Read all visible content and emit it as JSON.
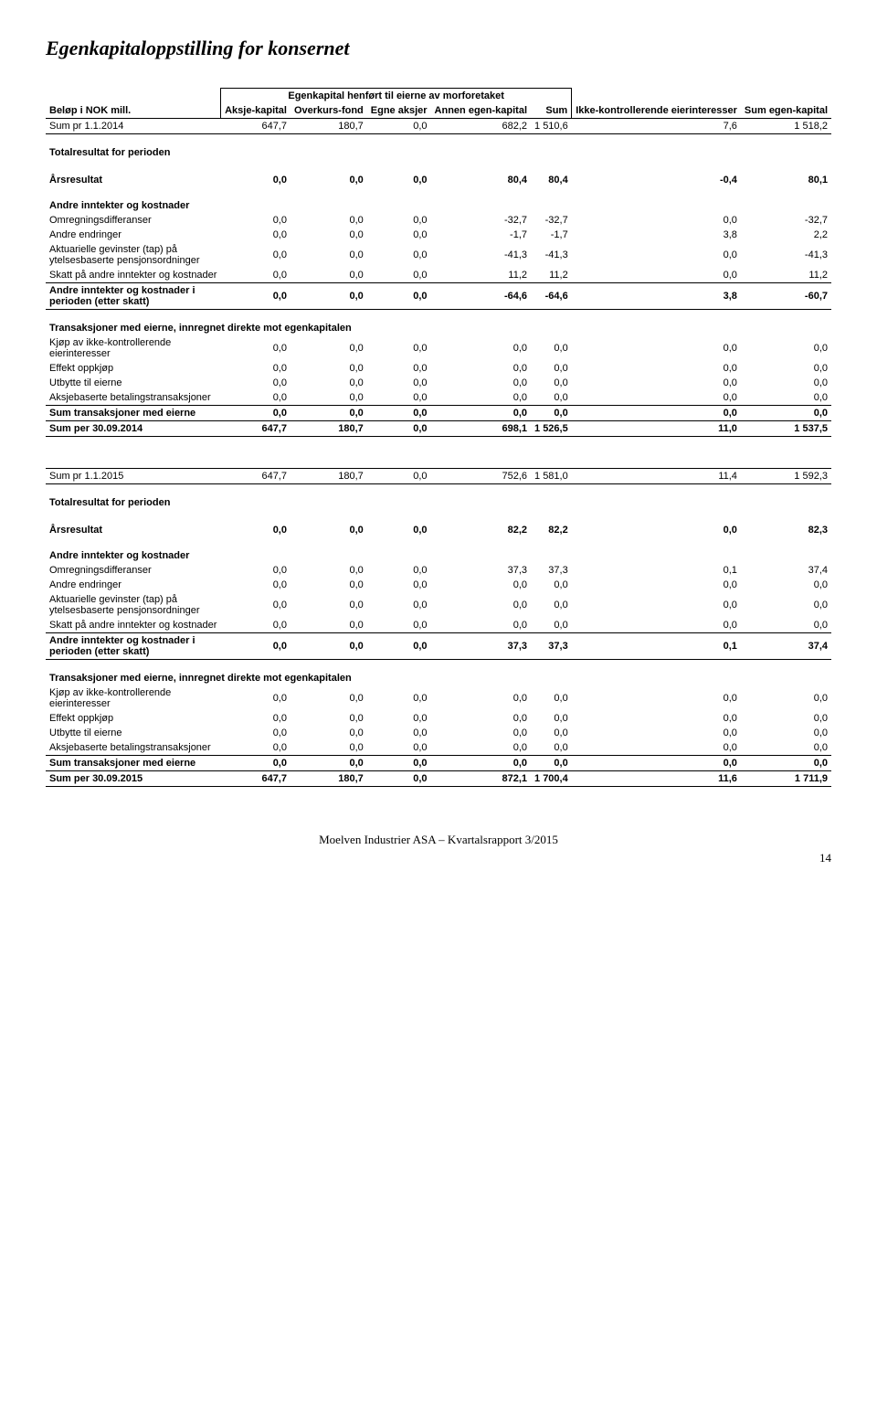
{
  "title": "Egenkapitaloppstilling for konsernet",
  "headers": {
    "group_title": "Egenkapital henført til eierne av morforetaket",
    "row_label": "Beløp i NOK mill.",
    "cols": [
      "Aksje-kapital",
      "Overkurs-fond",
      "Egne aksjer",
      "Annen egen-kapital",
      "Sum",
      "Ikke-kontrollerende eierinteresser",
      "Sum egen-kapital"
    ]
  },
  "sections": [
    {
      "open_row": {
        "label": "Sum pr 1.1.2014",
        "vals": [
          "647,7",
          "180,7",
          "0,0",
          "682,2",
          "1 510,6",
          "7,6",
          "1 518,2"
        ],
        "bold": false,
        "underlined": true
      },
      "heading": "Totalresultat for perioden",
      "result_row": {
        "label": "Årsresultat",
        "vals": [
          "0,0",
          "0,0",
          "0,0",
          "80,4",
          "80,4",
          "-0,4",
          "80,1"
        ],
        "bold": true
      },
      "sub_heading": "Andre inntekter og kostnader",
      "rows": [
        {
          "label": "Omregningsdifferanser",
          "vals": [
            "0,0",
            "0,0",
            "0,0",
            "-32,7",
            "-32,7",
            "0,0",
            "-32,7"
          ]
        },
        {
          "label": "Andre endringer",
          "vals": [
            "0,0",
            "0,0",
            "0,0",
            "-1,7",
            "-1,7",
            "3,8",
            "2,2"
          ]
        },
        {
          "label": "Aktuarielle gevinster (tap) på ytelsesbaserte pensjonsordninger",
          "vals": [
            "0,0",
            "0,0",
            "0,0",
            "-41,3",
            "-41,3",
            "0,0",
            "-41,3"
          ]
        },
        {
          "label": "Skatt på andre inntekter og kostnader",
          "vals": [
            "0,0",
            "0,0",
            "0,0",
            "11,2",
            "11,2",
            "0,0",
            "11,2"
          ]
        }
      ],
      "subtotal": {
        "label": "Andre inntekter og kostnader i perioden (etter skatt)",
        "vals": [
          "0,0",
          "0,0",
          "0,0",
          "-64,6",
          "-64,6",
          "3,8",
          "-60,7"
        ],
        "bold": true,
        "underlined": true
      },
      "trans_heading": "Transaksjoner med eierne, innregnet direkte mot egenkapitalen",
      "trans_rows": [
        {
          "label": "Kjøp av ikke-kontrollerende eierinteresser",
          "vals": [
            "0,0",
            "0,0",
            "0,0",
            "0,0",
            "0,0",
            "0,0",
            "0,0"
          ]
        },
        {
          "label": "Effekt oppkjøp",
          "vals": [
            "0,0",
            "0,0",
            "0,0",
            "0,0",
            "0,0",
            "0,0",
            "0,0"
          ]
        },
        {
          "label": "Utbytte til eierne",
          "vals": [
            "0,0",
            "0,0",
            "0,0",
            "0,0",
            "0,0",
            "0,0",
            "0,0"
          ]
        },
        {
          "label": "Aksjebaserte betalingstransaksjoner",
          "vals": [
            "0,0",
            "0,0",
            "0,0",
            "0,0",
            "0,0",
            "0,0",
            "0,0"
          ]
        }
      ],
      "trans_sum": {
        "label": "Sum transaksjoner med eierne",
        "vals": [
          "0,0",
          "0,0",
          "0,0",
          "0,0",
          "0,0",
          "0,0",
          "0,0"
        ],
        "bold": true,
        "underlined": true
      },
      "close_row": {
        "label": "Sum per 30.09.2014",
        "vals": [
          "647,7",
          "180,7",
          "0,0",
          "698,1",
          "1 526,5",
          "11,0",
          "1 537,5"
        ],
        "bold": true,
        "underlined": true
      }
    },
    {
      "open_row": {
        "label": "Sum pr 1.1.2015",
        "vals": [
          "647,7",
          "180,7",
          "0,0",
          "752,6",
          "1 581,0",
          "11,4",
          "1 592,3"
        ],
        "bold": false,
        "underlined": true
      },
      "heading": "Totalresultat for perioden",
      "result_row": {
        "label": "Årsresultat",
        "vals": [
          "0,0",
          "0,0",
          "0,0",
          "82,2",
          "82,2",
          "0,0",
          "82,3"
        ],
        "bold": true
      },
      "sub_heading": "Andre inntekter og kostnader",
      "rows": [
        {
          "label": "Omregningsdifferanser",
          "vals": [
            "0,0",
            "0,0",
            "0,0",
            "37,3",
            "37,3",
            "0,1",
            "37,4"
          ]
        },
        {
          "label": "Andre endringer",
          "vals": [
            "0,0",
            "0,0",
            "0,0",
            "0,0",
            "0,0",
            "0,0",
            "0,0"
          ]
        },
        {
          "label": "Aktuarielle gevinster (tap) på ytelsesbaserte pensjonsordninger",
          "vals": [
            "0,0",
            "0,0",
            "0,0",
            "0,0",
            "0,0",
            "0,0",
            "0,0"
          ]
        },
        {
          "label": "Skatt på andre inntekter og kostnader",
          "vals": [
            "0,0",
            "0,0",
            "0,0",
            "0,0",
            "0,0",
            "0,0",
            "0,0"
          ]
        }
      ],
      "subtotal": {
        "label": "Andre inntekter og kostnader i perioden (etter skatt)",
        "vals": [
          "0,0",
          "0,0",
          "0,0",
          "37,3",
          "37,3",
          "0,1",
          "37,4"
        ],
        "bold": true,
        "underlined": true
      },
      "trans_heading": "Transaksjoner med eierne, innregnet direkte mot egenkapitalen",
      "trans_rows": [
        {
          "label": "Kjøp av ikke-kontrollerende eierinteresser",
          "vals": [
            "0,0",
            "0,0",
            "0,0",
            "0,0",
            "0,0",
            "0,0",
            "0,0"
          ]
        },
        {
          "label": "Effekt oppkjøp",
          "vals": [
            "0,0",
            "0,0",
            "0,0",
            "0,0",
            "0,0",
            "0,0",
            "0,0"
          ]
        },
        {
          "label": "Utbytte til eierne",
          "vals": [
            "0,0",
            "0,0",
            "0,0",
            "0,0",
            "0,0",
            "0,0",
            "0,0"
          ]
        },
        {
          "label": "Aksjebaserte betalingstransaksjoner",
          "vals": [
            "0,0",
            "0,0",
            "0,0",
            "0,0",
            "0,0",
            "0,0",
            "0,0"
          ]
        }
      ],
      "trans_sum": {
        "label": "Sum transaksjoner med eierne",
        "vals": [
          "0,0",
          "0,0",
          "0,0",
          "0,0",
          "0,0",
          "0,0",
          "0,0"
        ],
        "bold": true,
        "underlined": true
      },
      "close_row": {
        "label": "Sum per 30.09.2015",
        "vals": [
          "647,7",
          "180,7",
          "0,0",
          "872,1",
          "1 700,4",
          "11,6",
          "1 711,9"
        ],
        "bold": true,
        "underlined": true
      }
    }
  ],
  "footer": "Moelven Industrier ASA – Kvartalsrapport 3/2015",
  "page_number": "14",
  "colors": {
    "background": "#ffffff",
    "text": "#000000",
    "border": "#000000"
  },
  "fonts": {
    "title_family": "Times New Roman",
    "title_size_pt": 16,
    "body_family": "Arial",
    "body_size_pt": 8
  }
}
